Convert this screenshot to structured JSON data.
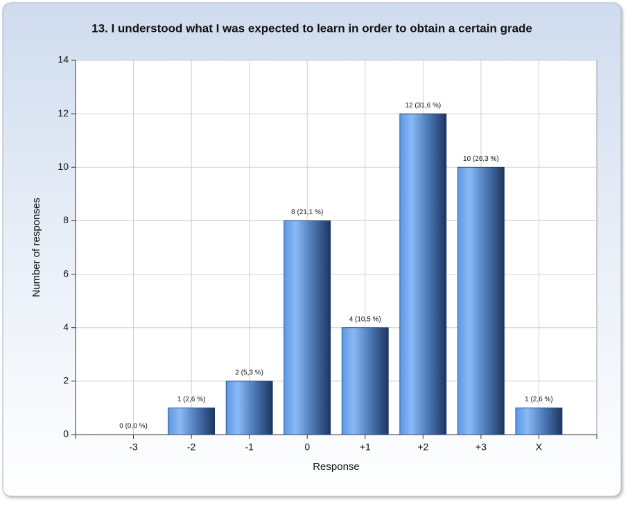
{
  "chart_data": {
    "type": "bar",
    "title": "13. I understood what I was expected to learn in order to obtain a certain grade",
    "x_label": "Response",
    "y_label": "Number of responses",
    "categories": [
      "-3",
      "-2",
      "-1",
      "0",
      "+1",
      "+2",
      "+3",
      "X"
    ],
    "values": [
      0,
      1,
      2,
      8,
      4,
      12,
      10,
      1
    ],
    "value_labels": [
      "0 (0,0 %)",
      "1 (2,6 %)",
      "2 (5,3 %)",
      "8 (21,1 %)",
      "4 (10,5 %)",
      "12 (31,6 %)",
      "10 (26,3 %)",
      "1 (2,6 %)"
    ],
    "color": "#4f86d6",
    "ylim": [
      0,
      14
    ],
    "yticks": [
      0,
      2,
      4,
      6,
      8,
      10,
      12,
      14
    ],
    "grid": true
  }
}
